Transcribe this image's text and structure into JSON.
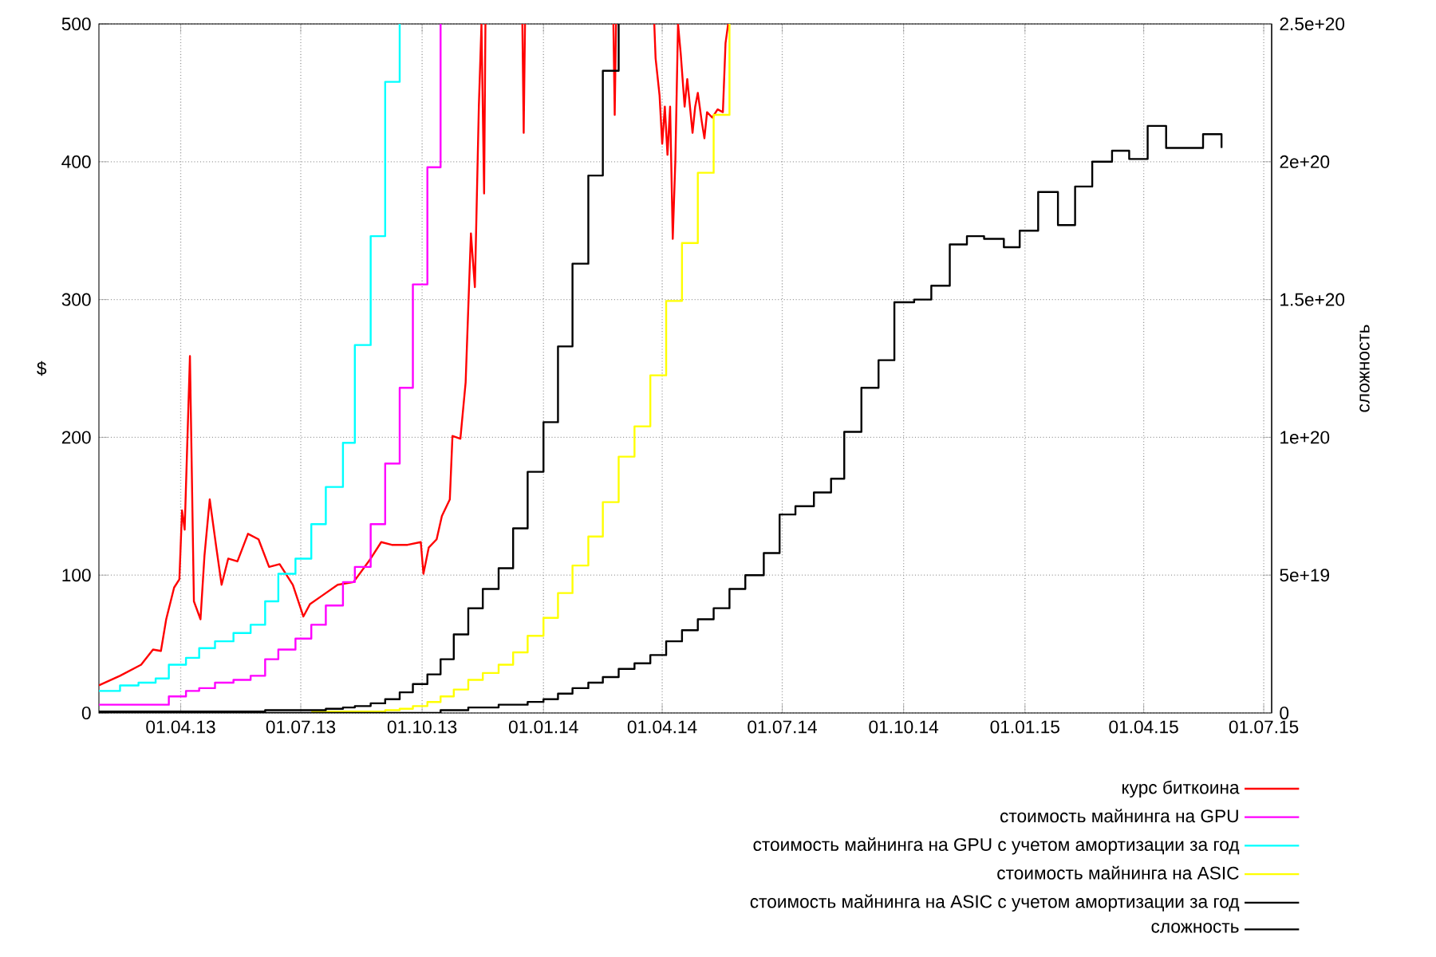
{
  "chart_data": {
    "type": "line",
    "ylabel": "$",
    "y2label": "сложность",
    "xlim": [
      "2013-01-29",
      "2015-07-07"
    ],
    "xticks": [
      {
        "value": "2013-04-01",
        "label": "01.04.13"
      },
      {
        "value": "2013-07-01",
        "label": "01.07.13"
      },
      {
        "value": "2013-10-01",
        "label": "01.10.13"
      },
      {
        "value": "2014-01-01",
        "label": "01.01.14"
      },
      {
        "value": "2014-04-01",
        "label": "01.04.14"
      },
      {
        "value": "2014-07-01",
        "label": "01.07.14"
      },
      {
        "value": "2014-10-01",
        "label": "01.10.14"
      },
      {
        "value": "2015-01-01",
        "label": "01.01.15"
      },
      {
        "value": "2015-04-01",
        "label": "01.04.15"
      },
      {
        "value": "2015-07-01",
        "label": "01.07.15"
      }
    ],
    "ylim": [
      0,
      500
    ],
    "yticks": [
      0,
      100,
      200,
      300,
      400,
      500
    ],
    "y2lim": [
      0,
      2.5e+20
    ],
    "y2ticks": [
      0,
      {
        "value": 5e+19,
        "label": "5e+19"
      },
      {
        "value": 1e+20,
        "label": "1e+20"
      },
      {
        "value": 1.5e+20,
        "label": "1.5e+20"
      },
      {
        "value": 2e+20,
        "label": "2e+20"
      },
      {
        "value": 2.5e+20,
        "label": "2.5e+20"
      }
    ],
    "grid": true,
    "legend": "bottom right",
    "x": [
      "2013-01-29",
      "2013-02-14",
      "2013-02-28",
      "2013-03-13",
      "2013-03-23",
      "2013-04-05",
      "2013-04-15",
      "2013-04-27",
      "2013-05-11",
      "2013-05-24",
      "2013-06-04",
      "2013-06-14",
      "2013-06-27",
      "2013-07-09",
      "2013-07-20",
      "2013-08-02",
      "2013-08-11",
      "2013-08-23",
      "2013-09-03",
      "2013-09-14",
      "2013-09-24",
      "2013-10-05",
      "2013-10-15",
      "2013-10-25",
      "2013-11-05",
      "2013-11-16",
      "2013-11-28",
      "2013-12-09",
      "2013-12-20",
      "2014-01-01",
      "2014-01-12",
      "2014-01-23",
      "2014-02-04",
      "2014-02-15",
      "2014-02-27",
      "2014-03-11",
      "2014-03-23",
      "2014-04-04",
      "2014-04-16",
      "2014-04-28",
      "2014-05-10",
      "2014-05-22",
      "2014-06-03",
      "2014-06-17",
      "2014-06-29",
      "2014-07-11",
      "2014-07-25",
      "2014-08-07",
      "2014-08-17",
      "2014-08-30",
      "2014-09-12",
      "2014-09-24",
      "2014-10-09",
      "2014-10-22",
      "2014-11-05",
      "2014-11-18",
      "2014-12-01",
      "2014-12-16",
      "2014-12-28",
      "2015-01-11",
      "2015-01-26",
      "2015-02-08",
      "2015-02-21",
      "2015-03-08",
      "2015-03-21",
      "2015-04-04",
      "2015-04-18",
      "2015-05-02",
      "2015-05-16",
      "2015-05-30"
    ],
    "series": [
      {
        "name": "курс биткоина",
        "color": "#ff0000",
        "x": [
          "2013-01-29",
          "2013-02-14",
          "2013-03-02",
          "2013-03-11",
          "2013-03-17",
          "2013-03-21",
          "2013-03-27",
          "2013-03-31",
          "2013-04-02",
          "2013-04-04",
          "2013-04-08",
          "2013-04-11",
          "2013-04-16",
          "2013-04-19",
          "2013-04-23",
          "2013-04-28",
          "2013-05-02",
          "2013-05-07",
          "2013-05-14",
          "2013-05-22",
          "2013-05-30",
          "2013-06-07",
          "2013-06-15",
          "2013-06-25",
          "2013-07-03",
          "2013-07-08",
          "2013-07-17",
          "2013-07-29",
          "2013-08-10",
          "2013-08-23",
          "2013-08-31",
          "2013-09-08",
          "2013-09-20",
          "2013-09-30",
          "2013-10-02",
          "2013-10-06",
          "2013-10-12",
          "2013-10-16",
          "2013-10-22",
          "2013-10-24",
          "2013-10-30",
          "2013-11-03",
          "2013-11-07",
          "2013-11-10",
          "2013-11-13",
          "2013-11-15",
          "2013-11-17",
          "2013-11-18",
          "2013-11-20",
          "2013-12-16",
          "2013-12-17",
          "2013-12-18",
          "2013-12-19",
          "2014-02-23",
          "2014-02-24",
          "2014-02-25",
          "2014-02-26",
          "2014-03-26",
          "2014-03-27",
          "2014-03-30",
          "2014-04-01",
          "2014-04-03",
          "2014-04-05",
          "2014-04-07",
          "2014-04-09",
          "2014-04-11",
          "2014-04-13",
          "2014-04-15",
          "2014-04-18",
          "2014-04-20",
          "2014-04-24",
          "2014-04-26",
          "2014-04-28",
          "2014-05-01",
          "2014-05-03",
          "2014-05-05",
          "2014-05-09",
          "2014-05-13",
          "2014-05-17",
          "2014-05-19",
          "2014-05-21"
        ],
        "values": [
          20,
          27,
          35,
          46,
          45,
          68,
          91,
          97,
          147,
          133,
          259,
          81,
          68,
          114,
          155,
          120,
          93,
          112,
          110,
          130,
          126,
          106,
          108,
          93,
          70,
          79,
          85,
          93,
          95,
          112,
          124,
          122,
          122,
          124,
          101,
          120,
          126,
          143,
          155,
          201,
          199,
          240,
          348,
          309,
          440,
          500,
          377,
          500,
          null,
          500,
          421,
          500,
          null,
          500,
          434,
          500,
          null,
          500,
          475,
          448,
          413,
          440,
          405,
          440,
          344,
          402,
          500,
          479,
          440,
          460,
          421,
          440,
          450,
          429,
          417,
          436,
          432,
          438,
          436,
          486,
          500
        ]
      },
      {
        "name": "стоимость майнинга на GPU",
        "color": "#ff00ff",
        "type": "step",
        "values": [
          6,
          6,
          6,
          6,
          12,
          16,
          18,
          22,
          24,
          27,
          39,
          46,
          54,
          64,
          78,
          95,
          106,
          137,
          181,
          236,
          311,
          396,
          500,
          null,
          null,
          null,
          null,
          null,
          null,
          null,
          null,
          null,
          null,
          null,
          null,
          null,
          null,
          null,
          null,
          null,
          null,
          null,
          null,
          null,
          null,
          null,
          null,
          null,
          null,
          null,
          null,
          null,
          null,
          null,
          null,
          null,
          null,
          null,
          null,
          null,
          null,
          null,
          null,
          null,
          null,
          null,
          null,
          null,
          null,
          null
        ]
      },
      {
        "name": "стоимость майнинга на GPU с учетом амортизации за год",
        "color": "#00ffff",
        "type": "step",
        "values": [
          16,
          20,
          22,
          25,
          35,
          40,
          47,
          52,
          58,
          64,
          81,
          101,
          112,
          137,
          164,
          196,
          267,
          346,
          458,
          500,
          null,
          null,
          null,
          null,
          null,
          null,
          null,
          null,
          null,
          null,
          null,
          null,
          null,
          null,
          null,
          null,
          null,
          null,
          null,
          null,
          null,
          null,
          null,
          null,
          null,
          null,
          null,
          null,
          null,
          null,
          null,
          null,
          null,
          null,
          null,
          null,
          null,
          null,
          null,
          null,
          null,
          null,
          null,
          null,
          null,
          null,
          null,
          null,
          null,
          null
        ]
      },
      {
        "name": "стоимость майнинга на ASIC",
        "color": "#ffff00",
        "type": "step",
        "values": [
          null,
          null,
          null,
          null,
          null,
          null,
          null,
          null,
          null,
          null,
          null,
          null,
          null,
          1,
          1,
          1,
          1,
          1,
          2,
          3,
          5,
          8,
          12,
          17,
          24,
          29,
          35,
          44,
          56,
          69,
          87,
          107,
          128,
          153,
          186,
          208,
          245,
          299,
          341,
          392,
          434,
          500,
          null,
          null,
          null,
          null,
          null,
          null,
          null,
          null,
          null,
          null,
          null,
          null,
          null,
          null,
          null,
          null,
          null,
          null,
          null,
          null,
          null,
          null,
          null,
          null,
          null,
          null,
          null,
          null
        ]
      },
      {
        "name": "стоимость майнинга на ASIC с учетом амортизации за год",
        "color": "#000000",
        "type": "step",
        "values": [
          1,
          1,
          1,
          1,
          1,
          1,
          1,
          1,
          1,
          1,
          2,
          2,
          2,
          2,
          3,
          4,
          5,
          7,
          10,
          15,
          21,
          28,
          39,
          57,
          76,
          90,
          105,
          134,
          175,
          211,
          266,
          326,
          390,
          466,
          500,
          null,
          null,
          null,
          null,
          null,
          null,
          null,
          null,
          null,
          null,
          null,
          null,
          null,
          null,
          null,
          null,
          null,
          null,
          null,
          null,
          null,
          null,
          null,
          null,
          null,
          null,
          null,
          null,
          null,
          null,
          null,
          null,
          null,
          null,
          null
        ]
      },
      {
        "name": "сложность",
        "color": "#000000",
        "type": "step",
        "axis": "y2",
        "values": [
          0,
          0,
          0,
          0,
          0,
          0,
          0,
          0,
          0,
          0,
          0,
          0,
          0,
          0,
          0,
          0,
          0,
          0,
          0,
          0,
          0,
          0,
          1e+18,
          1e+18,
          2e+18,
          2e+18,
          3e+18,
          3e+18,
          4e+18,
          5e+18,
          7e+18,
          9e+18,
          1.1e+19,
          1.3e+19,
          1.6e+19,
          1.8e+19,
          2.1e+19,
          2.6e+19,
          3e+19,
          3.4e+19,
          3.8e+19,
          4.5e+19,
          5e+19,
          5.8e+19,
          7.2e+19,
          7.5e+19,
          8e+19,
          8.5e+19,
          1.02e+20,
          1.18e+20,
          1.28e+20,
          1.49e+20,
          1.5e+20,
          1.55e+20,
          1.7e+20,
          1.73e+20,
          1.72e+20,
          1.69e+20,
          1.75e+20,
          1.89e+20,
          1.77e+20,
          1.91e+20,
          2e+20,
          2.04e+20,
          2.01e+20,
          2.13e+20,
          2.05e+20,
          2.05e+20,
          2.1e+20,
          2.05e+20
        ]
      }
    ]
  }
}
